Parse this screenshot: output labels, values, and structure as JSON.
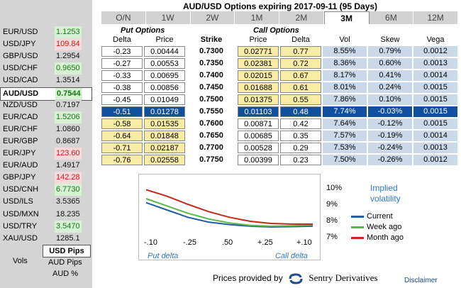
{
  "title": "AUD/USD Options expiring 2017-09-11 (95 Days)",
  "tabs": [
    "O/N",
    "1W",
    "2W",
    "1M",
    "2M",
    "3M",
    "6M",
    "12M"
  ],
  "active_tab": "3M",
  "currency_pairs": [
    {
      "name": "EUR/USD",
      "value": "1.1253",
      "style": "green"
    },
    {
      "name": "USD/JPY",
      "value": "109.84",
      "style": "red"
    },
    {
      "name": "GBP/USD",
      "value": "1.2954",
      "style": "plain"
    },
    {
      "name": "USD/CHF",
      "value": "0.9650",
      "style": "green"
    },
    {
      "name": "USD/CAD",
      "value": "1.3514",
      "style": "plain"
    },
    {
      "name": "AUD/USD",
      "value": "0.7544",
      "style": "green",
      "selected": true
    },
    {
      "name": "NZD/USD",
      "value": "0.7197",
      "style": "plain"
    },
    {
      "name": "EUR/CAD",
      "value": "1.5206",
      "style": "green"
    },
    {
      "name": "EUR/CHF",
      "value": "1.0860",
      "style": "plain"
    },
    {
      "name": "EUR/GBP",
      "value": "0.8687",
      "style": "plain"
    },
    {
      "name": "EUR/JPY",
      "value": "123.60",
      "style": "red"
    },
    {
      "name": "EUR/AUD",
      "value": "1.4917",
      "style": "plain"
    },
    {
      "name": "GBP/JPY",
      "value": "142.28",
      "style": "red"
    },
    {
      "name": "USD/CNH",
      "value": "6.7730",
      "style": "green"
    },
    {
      "name": "USD/ILS",
      "value": "3.5365",
      "style": "plain"
    },
    {
      "name": "USD/MXN",
      "value": "18.235",
      "style": "plain"
    },
    {
      "name": "USD/TRY",
      "value": "3.5470",
      "style": "green"
    },
    {
      "name": "XAU/USD",
      "value": "1285.1",
      "style": "plain"
    }
  ],
  "units": {
    "usd_pips": "USD Pips",
    "vols": "Vols",
    "aud_pips": "AUD Pips",
    "aud_pct": "AUD %"
  },
  "group_headers": {
    "put": "Put Options",
    "call": "Call Options"
  },
  "columns": [
    "Delta",
    "Price",
    "Strike",
    "Price",
    "Delta",
    "Vol",
    "Skew",
    "Vega"
  ],
  "rows": [
    {
      "pd": "-0.23",
      "pp": "0.00444",
      "strike": "0.7300",
      "cp": "0.02771",
      "cd": "0.77",
      "vol": "8.55%",
      "skew": "0.79%",
      "vega": "0.0012"
    },
    {
      "pd": "-0.27",
      "pp": "0.00553",
      "strike": "0.7350",
      "cp": "0.02381",
      "cd": "0.72",
      "vol": "8.36%",
      "skew": "0.60%",
      "vega": "0.0013"
    },
    {
      "pd": "-0.33",
      "pp": "0.00695",
      "strike": "0.7400",
      "cp": "0.02015",
      "cd": "0.67",
      "vol": "8.17%",
      "skew": "0.41%",
      "vega": "0.0014"
    },
    {
      "pd": "-0.38",
      "pp": "0.00856",
      "strike": "0.7450",
      "cp": "0.01688",
      "cd": "0.61",
      "vol": "8.01%",
      "skew": "0.24%",
      "vega": "0.0015"
    },
    {
      "pd": "-0.45",
      "pp": "0.01049",
      "strike": "0.7500",
      "cp": "0.01375",
      "cd": "0.55",
      "vol": "7.86%",
      "skew": "0.10%",
      "vega": "0.0015"
    },
    {
      "pd": "-0.51",
      "pp": "0.01278",
      "strike": "0.7550",
      "cp": "0.01103",
      "cd": "0.48",
      "vol": "7.74%",
      "skew": "-0.03%",
      "vega": "0.0015",
      "selected": true
    },
    {
      "pd": "-0.58",
      "pp": "0.01535",
      "strike": "0.7600",
      "cp": "0.00871",
      "cd": "0.42",
      "vol": "7.64%",
      "skew": "-0.12%",
      "vega": "0.0015"
    },
    {
      "pd": "-0.64",
      "pp": "0.01848",
      "strike": "0.7650",
      "cp": "0.00685",
      "cd": "0.35",
      "vol": "7.57%",
      "skew": "-0.19%",
      "vega": "0.0014"
    },
    {
      "pd": "-0.71",
      "pp": "0.02187",
      "strike": "0.7700",
      "cp": "0.00528",
      "cd": "0.29",
      "vol": "7.53%",
      "skew": "-0.24%",
      "vega": "0.0013"
    },
    {
      "pd": "-0.76",
      "pp": "0.02558",
      "strike": "0.7750",
      "cp": "0.00399",
      "cd": "0.23",
      "vol": "7.50%",
      "skew": "-0.26%",
      "vega": "0.0012"
    }
  ],
  "chart_data": {
    "type": "line",
    "xticks": [
      "-.10",
      "-.25",
      ".50",
      "+.25",
      "+.10"
    ],
    "yticks": [
      "10%",
      "9%",
      "8%",
      "7%"
    ],
    "ylim": [
      7,
      10.5
    ],
    "legend_title": "Implied volatility",
    "x": [
      0,
      1,
      2,
      3,
      4,
      5,
      6,
      7,
      8
    ],
    "series": [
      {
        "name": "Current",
        "color": "#1f5fa5",
        "values": [
          9.2,
          8.75,
          8.3,
          8.0,
          7.85,
          7.75,
          7.7,
          7.72,
          7.75
        ]
      },
      {
        "name": "Week ago",
        "color": "#5cb84c",
        "values": [
          9.45,
          9.0,
          8.55,
          8.2,
          7.95,
          7.8,
          7.75,
          7.78,
          7.82
        ]
      },
      {
        "name": "Month ago",
        "color": "#c02a1a",
        "values": [
          10.0,
          9.6,
          9.1,
          8.65,
          8.3,
          8.05,
          7.92,
          7.88,
          7.88
        ]
      }
    ],
    "put_label": "Put delta",
    "call_label": "Call delta"
  },
  "credit": "Prices provided by",
  "brand": "Sentry Derivatives",
  "disclaimer": "Disclaimer"
}
